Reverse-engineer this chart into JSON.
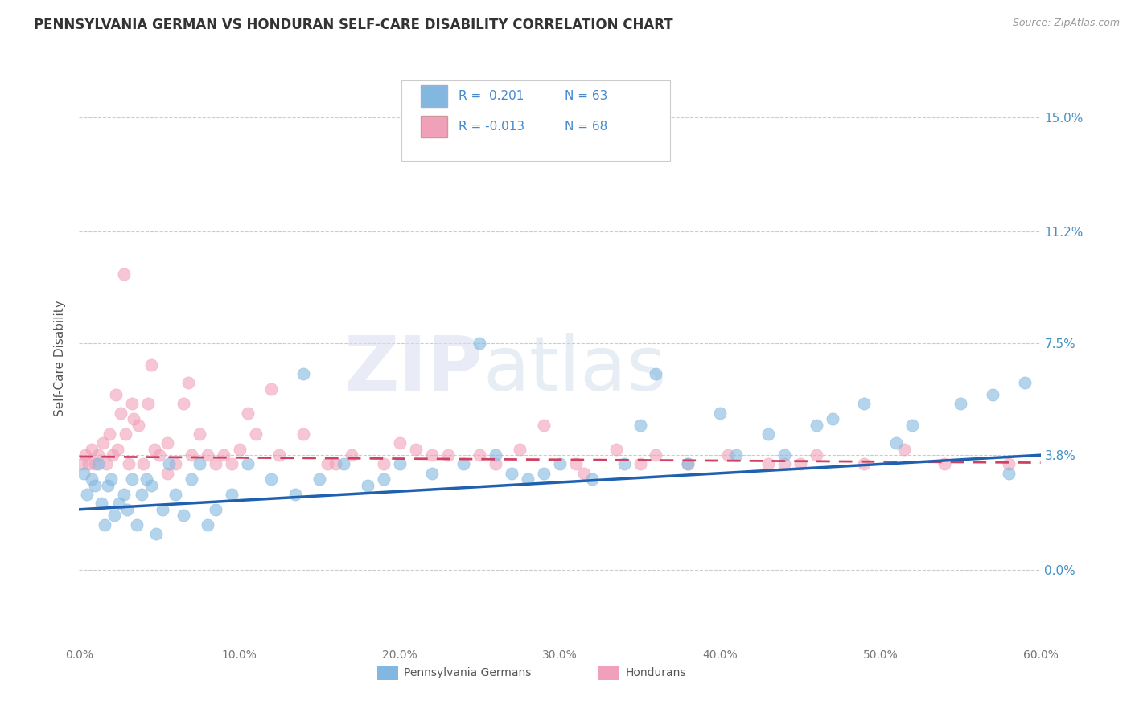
{
  "title": "PENNSYLVANIA GERMAN VS HONDURAN SELF-CARE DISABILITY CORRELATION CHART",
  "source_text": "Source: ZipAtlas.com",
  "ylabel": "Self-Care Disability",
  "xlim": [
    0.0,
    60.0
  ],
  "ylim": [
    -2.5,
    16.5
  ],
  "yticks": [
    0.0,
    3.8,
    7.5,
    11.2,
    15.0
  ],
  "xticks": [
    0.0,
    10.0,
    20.0,
    30.0,
    40.0,
    50.0,
    60.0
  ],
  "blue_color": "#82b8e0",
  "pink_color": "#f0a0b8",
  "trend_blue": "#2060b0",
  "trend_pink": "#d04060",
  "R_blue": 0.201,
  "N_blue": 63,
  "R_pink": -0.013,
  "N_pink": 68,
  "watermark": "ZIPAtlas",
  "bg_color": "#ffffff",
  "grid_color": "#cccccc",
  "tick_color_right": "#4292c6",
  "blue_scatter_x": [
    0.3,
    0.5,
    0.8,
    1.0,
    1.2,
    1.4,
    1.6,
    1.8,
    2.0,
    2.2,
    2.5,
    2.8,
    3.0,
    3.3,
    3.6,
    3.9,
    4.2,
    4.5,
    4.8,
    5.2,
    5.6,
    6.0,
    6.5,
    7.0,
    7.5,
    8.5,
    9.5,
    10.5,
    12.0,
    13.5,
    15.0,
    16.5,
    18.0,
    20.0,
    22.0,
    24.0,
    26.0,
    28.0,
    30.0,
    32.0,
    35.0,
    38.0,
    40.0,
    43.0,
    46.0,
    49.0,
    52.0,
    55.0,
    57.0,
    59.0,
    29.0,
    34.0,
    47.0,
    51.0,
    58.0,
    36.0,
    41.0,
    25.0,
    14.0,
    19.0,
    8.0,
    27.0,
    44.0
  ],
  "blue_scatter_y": [
    3.2,
    2.5,
    3.0,
    2.8,
    3.5,
    2.2,
    1.5,
    2.8,
    3.0,
    1.8,
    2.2,
    2.5,
    2.0,
    3.0,
    1.5,
    2.5,
    3.0,
    2.8,
    1.2,
    2.0,
    3.5,
    2.5,
    1.8,
    3.0,
    3.5,
    2.0,
    2.5,
    3.5,
    3.0,
    2.5,
    3.0,
    3.5,
    2.8,
    3.5,
    3.2,
    3.5,
    3.8,
    3.0,
    3.5,
    3.0,
    4.8,
    3.5,
    5.2,
    4.5,
    4.8,
    5.5,
    4.8,
    5.5,
    5.8,
    6.2,
    3.2,
    3.5,
    5.0,
    4.2,
    3.2,
    6.5,
    3.8,
    7.5,
    6.5,
    3.0,
    1.5,
    3.2,
    3.8
  ],
  "pink_scatter_x": [
    0.2,
    0.4,
    0.6,
    0.8,
    1.0,
    1.2,
    1.5,
    1.7,
    1.9,
    2.1,
    2.4,
    2.6,
    2.9,
    3.1,
    3.4,
    3.7,
    4.0,
    4.3,
    4.7,
    5.0,
    5.5,
    6.0,
    6.5,
    7.0,
    7.5,
    8.0,
    8.5,
    9.0,
    10.0,
    11.0,
    12.5,
    14.0,
    15.5,
    17.0,
    19.0,
    21.0,
    23.0,
    25.0,
    27.5,
    29.0,
    31.0,
    33.5,
    36.0,
    38.0,
    40.5,
    43.0,
    46.0,
    49.0,
    51.5,
    54.0,
    2.3,
    3.3,
    5.5,
    9.5,
    16.0,
    20.0,
    26.0,
    31.5,
    4.5,
    6.8,
    12.0,
    35.0,
    45.0,
    22.0,
    10.5,
    2.8,
    44.0,
    58.0
  ],
  "pink_scatter_y": [
    3.5,
    3.8,
    3.5,
    4.0,
    3.5,
    3.8,
    4.2,
    3.5,
    4.5,
    3.8,
    4.0,
    5.2,
    4.5,
    3.5,
    5.0,
    4.8,
    3.5,
    5.5,
    4.0,
    3.8,
    4.2,
    3.5,
    5.5,
    3.8,
    4.5,
    3.8,
    3.5,
    3.8,
    4.0,
    4.5,
    3.8,
    4.5,
    3.5,
    3.8,
    3.5,
    4.0,
    3.8,
    3.8,
    4.0,
    4.8,
    3.5,
    4.0,
    3.8,
    3.5,
    3.8,
    3.5,
    3.8,
    3.5,
    4.0,
    3.5,
    5.8,
    5.5,
    3.2,
    3.5,
    3.5,
    4.2,
    3.5,
    3.2,
    6.8,
    6.2,
    6.0,
    3.5,
    3.5,
    3.8,
    5.2,
    9.8,
    3.5,
    3.5
  ]
}
